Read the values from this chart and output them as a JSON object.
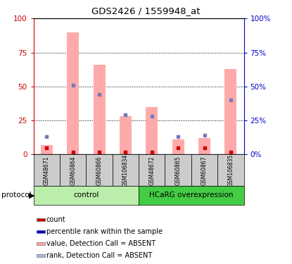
{
  "title": "GDS2426 / 1559948_at",
  "samples": [
    "GSM48671",
    "GSM60864",
    "GSM60866",
    "GSM106834",
    "GSM48672",
    "GSM60865",
    "GSM60867",
    "GSM106835"
  ],
  "pink_bar_values": [
    7,
    90,
    66,
    28,
    35,
    11,
    12,
    63
  ],
  "red_dot_values": [
    5,
    2,
    2,
    2,
    2,
    5,
    5,
    2
  ],
  "blue_dot_values": [
    13,
    51,
    44,
    29,
    28,
    13,
    14,
    40
  ],
  "ylim": [
    0,
    100
  ],
  "yticks": [
    0,
    25,
    50,
    75,
    100
  ],
  "left_tick_color": "#cc0000",
  "right_tick_color": "#0000cc",
  "pink_bar_color": "#ffaaaa",
  "red_dot_color": "#cc0000",
  "blue_dot_color": "#7777bb",
  "rank_absent_color": "#aabbdd",
  "control_bg_light": "#bbeeaa",
  "overexp_bg": "#44cc44",
  "sample_bg": "#cccccc",
  "protocol_label": "protocol",
  "control_label": "control",
  "overexp_label": "HCaRG overexpression",
  "legend_items": [
    {
      "label": "count",
      "color": "#cc0000"
    },
    {
      "label": "percentile rank within the sample",
      "color": "#0000cc"
    },
    {
      "label": "value, Detection Call = ABSENT",
      "color": "#ffaaaa"
    },
    {
      "label": "rank, Detection Call = ABSENT",
      "color": "#aabbdd"
    }
  ]
}
